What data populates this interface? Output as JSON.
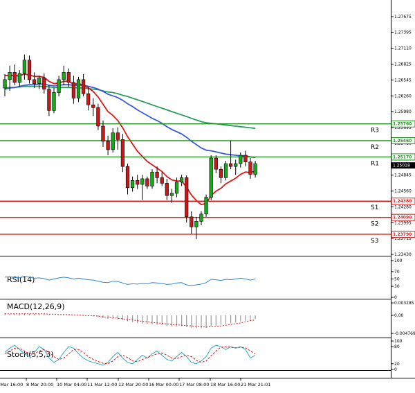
{
  "colors": {
    "bull": "#18a818",
    "bear": "#c81818",
    "wick": "#000000",
    "ema_fast": "#e01818",
    "ema_mid": "#3a5ad8",
    "ema_slow": "#2a9d5a",
    "resistance": "#1f8f1f",
    "support": "#e01818",
    "rsi": "#2f86d2",
    "macd_signal": "#e01818",
    "macd_hist": "#999999",
    "stoch_main": "#2aaacc",
    "stoch_signal": "#e01818"
  },
  "chart_data": [
    {
      "type": "candlestick",
      "price_ticks": [
        "1.27675",
        "1.27395",
        "1.27110",
        "1.26825",
        "1.26545",
        "1.26260",
        "1.25980",
        "1.25695",
        "1.25410",
        "1.25130",
        "1.24845",
        "1.24560",
        "1.24280",
        "1.23995",
        "1.23715",
        "1.23430"
      ],
      "ylim": [
        1.2343,
        1.27675
      ],
      "x_ticks": [
        "7 Mar 16:00",
        "8 Mar 20:00",
        "10 Mar 04:00",
        "11 Mar 12:00",
        "12 Mar 20:00",
        "16 Mar 00:00",
        "17 Mar 08:00",
        "18 Mar 16:00",
        "21 Mar 21:01"
      ],
      "levels": [
        {
          "name": "R3",
          "value": 1.2576,
          "label": "1.25760",
          "kind": "resistance"
        },
        {
          "name": "R2",
          "value": 1.2546,
          "label": "1.25460",
          "kind": "resistance"
        },
        {
          "name": "R1",
          "value": 1.2517,
          "label": "1.25170",
          "kind": "resistance"
        },
        {
          "name": "S1",
          "value": 1.2438,
          "label": "1.24380",
          "kind": "support"
        },
        {
          "name": "S2",
          "value": 1.2409,
          "label": "1.24090",
          "kind": "support"
        },
        {
          "name": "S3",
          "value": 1.2379,
          "label": "1.23790",
          "kind": "support"
        }
      ],
      "current_price": {
        "value": 1.25018,
        "label": "1.25018"
      },
      "candles": [
        {
          "o": 1.264,
          "h": 1.2665,
          "l": 1.2625,
          "c": 1.2655
        },
        {
          "o": 1.2655,
          "h": 1.268,
          "l": 1.2635,
          "c": 1.2668
        },
        {
          "o": 1.2668,
          "h": 1.2682,
          "l": 1.2645,
          "c": 1.265
        },
        {
          "o": 1.265,
          "h": 1.2672,
          "l": 1.2642,
          "c": 1.2666
        },
        {
          "o": 1.2666,
          "h": 1.27,
          "l": 1.2655,
          "c": 1.269
        },
        {
          "o": 1.269,
          "h": 1.2698,
          "l": 1.2648,
          "c": 1.2655
        },
        {
          "o": 1.2655,
          "h": 1.2668,
          "l": 1.264,
          "c": 1.2648
        },
        {
          "o": 1.2648,
          "h": 1.2662,
          "l": 1.2638,
          "c": 1.2658
        },
        {
          "o": 1.2658,
          "h": 1.2666,
          "l": 1.263,
          "c": 1.2638
        },
        {
          "o": 1.2638,
          "h": 1.2645,
          "l": 1.259,
          "c": 1.26
        },
        {
          "o": 1.26,
          "h": 1.264,
          "l": 1.2595,
          "c": 1.2632
        },
        {
          "o": 1.2632,
          "h": 1.2662,
          "l": 1.2625,
          "c": 1.2655
        },
        {
          "o": 1.2655,
          "h": 1.268,
          "l": 1.2645,
          "c": 1.2668
        },
        {
          "o": 1.2668,
          "h": 1.2675,
          "l": 1.2642,
          "c": 1.265
        },
        {
          "o": 1.265,
          "h": 1.2662,
          "l": 1.2612,
          "c": 1.2622
        },
        {
          "o": 1.2622,
          "h": 1.266,
          "l": 1.2615,
          "c": 1.2655
        },
        {
          "o": 1.2655,
          "h": 1.2665,
          "l": 1.2625,
          "c": 1.263
        },
        {
          "o": 1.263,
          "h": 1.2642,
          "l": 1.26,
          "c": 1.261
        },
        {
          "o": 1.261,
          "h": 1.2622,
          "l": 1.259,
          "c": 1.2605
        },
        {
          "o": 1.2605,
          "h": 1.2612,
          "l": 1.2565,
          "c": 1.2572
        },
        {
          "o": 1.2572,
          "h": 1.2582,
          "l": 1.2535,
          "c": 1.2545
        },
        {
          "o": 1.2545,
          "h": 1.2555,
          "l": 1.252,
          "c": 1.253
        },
        {
          "o": 1.253,
          "h": 1.2568,
          "l": 1.2525,
          "c": 1.256
        },
        {
          "o": 1.256,
          "h": 1.257,
          "l": 1.253,
          "c": 1.2548
        },
        {
          "o": 1.2548,
          "h": 1.2558,
          "l": 1.249,
          "c": 1.25
        },
        {
          "o": 1.25,
          "h": 1.2505,
          "l": 1.245,
          "c": 1.2462
        },
        {
          "o": 1.2462,
          "h": 1.2482,
          "l": 1.2455,
          "c": 1.2475
        },
        {
          "o": 1.2475,
          "h": 1.2485,
          "l": 1.246,
          "c": 1.2468
        },
        {
          "o": 1.2468,
          "h": 1.2485,
          "l": 1.244,
          "c": 1.2478
        },
        {
          "o": 1.2478,
          "h": 1.2482,
          "l": 1.246,
          "c": 1.2465
        },
        {
          "o": 1.2465,
          "h": 1.2495,
          "l": 1.246,
          "c": 1.249
        },
        {
          "o": 1.249,
          "h": 1.25,
          "l": 1.247,
          "c": 1.248
        },
        {
          "o": 1.248,
          "h": 1.249,
          "l": 1.2465,
          "c": 1.247
        },
        {
          "o": 1.247,
          "h": 1.2478,
          "l": 1.244,
          "c": 1.2448
        },
        {
          "o": 1.2448,
          "h": 1.246,
          "l": 1.2435,
          "c": 1.2452
        },
        {
          "o": 1.2452,
          "h": 1.248,
          "l": 1.2445,
          "c": 1.2472
        },
        {
          "o": 1.2472,
          "h": 1.2485,
          "l": 1.2465,
          "c": 1.248
        },
        {
          "o": 1.248,
          "h": 1.2484,
          "l": 1.24,
          "c": 1.241
        },
        {
          "o": 1.241,
          "h": 1.242,
          "l": 1.238,
          "c": 1.2392
        },
        {
          "o": 1.2392,
          "h": 1.241,
          "l": 1.237,
          "c": 1.2402
        },
        {
          "o": 1.2402,
          "h": 1.242,
          "l": 1.2395,
          "c": 1.2415
        },
        {
          "o": 1.2415,
          "h": 1.245,
          "l": 1.241,
          "c": 1.2445
        },
        {
          "o": 1.2445,
          "h": 1.252,
          "l": 1.244,
          "c": 1.2515
        },
        {
          "o": 1.2515,
          "h": 1.252,
          "l": 1.2488,
          "c": 1.2495
        },
        {
          "o": 1.2495,
          "h": 1.25,
          "l": 1.247,
          "c": 1.248
        },
        {
          "o": 1.248,
          "h": 1.251,
          "l": 1.2475,
          "c": 1.2505
        },
        {
          "o": 1.2505,
          "h": 1.2546,
          "l": 1.2495,
          "c": 1.25
        },
        {
          "o": 1.25,
          "h": 1.2512,
          "l": 1.2485,
          "c": 1.2505
        },
        {
          "o": 1.2505,
          "h": 1.2525,
          "l": 1.2498,
          "c": 1.252
        },
        {
          "o": 1.252,
          "h": 1.2528,
          "l": 1.25,
          "c": 1.2508
        },
        {
          "o": 1.2508,
          "h": 1.2515,
          "l": 1.2478,
          "c": 1.2486
        },
        {
          "o": 1.2486,
          "h": 1.251,
          "l": 1.248,
          "c": 1.2505
        }
      ],
      "ema_fast": [
        1.2662,
        1.2663,
        1.2662,
        1.2662,
        1.2665,
        1.2663,
        1.2661,
        1.2661,
        1.2659,
        1.2652,
        1.2648,
        1.2649,
        1.2652,
        1.2652,
        1.2647,
        1.2648,
        1.2645,
        1.264,
        1.2634,
        1.2624,
        1.2611,
        1.2598,
        1.2591,
        1.2582,
        1.2569,
        1.2553,
        1.254,
        1.2527,
        1.2518,
        1.2509,
        1.2503,
        1.2497,
        1.2491,
        1.2482,
        1.2476,
        1.2474,
        1.2474,
        1.2463,
        1.2449,
        1.2439,
        1.2432,
        1.2434,
        1.2448,
        1.2456,
        1.2461,
        1.2469,
        1.2474,
        1.2479,
        1.2486,
        1.249,
        1.2489,
        1.2492
      ],
      "ema_mid": [
        1.2638,
        1.264,
        1.2641,
        1.2643,
        1.2645,
        1.2646,
        1.2646,
        1.2647,
        1.2647,
        1.2645,
        1.2644,
        1.2645,
        1.2646,
        1.2646,
        1.2645,
        1.2645,
        1.2645,
        1.2643,
        1.2641,
        1.2638,
        1.2634,
        1.2629,
        1.2626,
        1.2623,
        1.2618,
        1.2612,
        1.2607,
        1.2601,
        1.2596,
        1.2591,
        1.2586,
        1.2582,
        1.2577,
        1.2571,
        1.2566,
        1.2562,
        1.2558,
        1.2552,
        1.2545,
        1.2539,
        1.2533,
        1.2529,
        1.2528,
        1.2526,
        1.2524,
        1.2522,
        1.2521,
        1.252,
        1.2519,
        1.2519,
        1.2517,
        1.2516
      ],
      "ema_slow": [
        1.264,
        1.2641,
        1.2641,
        1.2642,
        1.2643,
        1.2643,
        1.2643,
        1.2643,
        1.2643,
        1.2642,
        1.2641,
        1.2641,
        1.2641,
        1.2641,
        1.2641,
        1.264,
        1.264,
        1.2639,
        1.2638,
        1.2637,
        1.2635,
        1.2633,
        1.2632,
        1.263,
        1.2627,
        1.2625,
        1.2622,
        1.2619,
        1.2616,
        1.2613,
        1.261,
        1.2607,
        1.2604,
        1.2601,
        1.2598,
        1.2595,
        1.2592,
        1.2589,
        1.2586,
        1.2583,
        1.258,
        1.2578,
        1.2577,
        1.2576,
        1.2575,
        1.2574,
        1.2573,
        1.2572,
        1.2571,
        1.257,
        1.2569,
        1.2568
      ]
    },
    {
      "type": "line",
      "title": "RSI(14)",
      "ticks": [
        "100",
        "70",
        "50",
        "30",
        "0"
      ],
      "ylim": [
        0,
        100
      ],
      "series": [
        {
          "values": [
            55,
            56,
            54,
            53,
            57,
            55,
            52,
            53,
            51,
            47,
            50,
            53,
            55,
            53,
            50,
            52,
            50,
            48,
            47,
            44,
            41,
            40,
            44,
            43,
            39,
            35,
            37,
            36,
            38,
            37,
            40,
            39,
            38,
            35,
            36,
            39,
            40,
            34,
            32,
            34,
            36,
            40,
            49,
            48,
            46,
            49,
            48,
            50,
            52,
            50,
            47,
            50
          ]
        }
      ]
    },
    {
      "type": "bar",
      "title": "MACD(12,26,9)",
      "ticks": [
        "0.003285",
        "0.00",
        "-0.004769"
      ],
      "ylim": [
        -0.004769,
        0.003285
      ],
      "series": [
        {
          "name": "histogram",
          "values": [
            0.0004,
            0.0004,
            0.0004,
            0.0004,
            0.0005,
            0.0004,
            0.0004,
            0.0004,
            0.0003,
            0.0002,
            0.0001,
            0.0001,
            0.0002,
            0.0001,
            0.0,
            0.0,
            -0.0001,
            -0.0002,
            -0.0003,
            -0.0005,
            -0.0007,
            -0.0009,
            -0.001,
            -0.0011,
            -0.0013,
            -0.0016,
            -0.0018,
            -0.002,
            -0.0022,
            -0.0023,
            -0.0024,
            -0.0025,
            -0.0026,
            -0.0028,
            -0.0029,
            -0.0029,
            -0.0029,
            -0.0031,
            -0.0033,
            -0.0034,
            -0.0034,
            -0.0033,
            -0.0029,
            -0.0027,
            -0.0025,
            -0.0023,
            -0.0021,
            -0.0019,
            -0.0016,
            -0.0014,
            -0.0012,
            -0.001
          ]
        },
        {
          "name": "signal",
          "values": [
            0.0004,
            0.0004,
            0.0004,
            0.0004,
            0.0004,
            0.0004,
            0.0004,
            0.0004,
            0.0004,
            0.0003,
            0.0003,
            0.0002,
            0.0002,
            0.0002,
            0.0001,
            0.0001,
            0.0,
            -0.0001,
            -0.0001,
            -0.0002,
            -0.0004,
            -0.0005,
            -0.0006,
            -0.0008,
            -0.0009,
            -0.0011,
            -0.0012,
            -0.0014,
            -0.0016,
            -0.0017,
            -0.0019,
            -0.002,
            -0.0021,
            -0.0023,
            -0.0024,
            -0.0025,
            -0.0026,
            -0.0027,
            -0.0028,
            -0.0029,
            -0.003,
            -0.0031,
            -0.003,
            -0.0029,
            -0.0028,
            -0.0026,
            -0.0024,
            -0.0022,
            -0.002,
            -0.0017,
            -0.0014,
            -0.0012
          ]
        }
      ]
    },
    {
      "type": "line",
      "title": "Stoch(5,5,3)",
      "ticks": [
        "100",
        "80",
        "20",
        "0"
      ],
      "ylim": [
        0,
        100
      ],
      "series": [
        {
          "name": "main",
          "values": [
            60,
            75,
            85,
            70,
            55,
            45,
            60,
            80,
            70,
            40,
            25,
            35,
            60,
            80,
            75,
            55,
            40,
            30,
            25,
            20,
            15,
            25,
            45,
            60,
            40,
            25,
            20,
            35,
            50,
            40,
            55,
            65,
            50,
            35,
            30,
            45,
            60,
            45,
            25,
            20,
            30,
            45,
            75,
            85,
            80,
            70,
            80,
            75,
            80,
            70,
            40,
            50
          ]
        },
        {
          "name": "signal",
          "values": [
            55,
            65,
            75,
            75,
            65,
            55,
            55,
            65,
            70,
            60,
            45,
            35,
            40,
            55,
            70,
            70,
            60,
            45,
            35,
            28,
            22,
            20,
            30,
            45,
            50,
            42,
            30,
            27,
            35,
            42,
            48,
            55,
            58,
            50,
            40,
            38,
            45,
            50,
            45,
            32,
            25,
            30,
            48,
            65,
            78,
            80,
            78,
            76,
            78,
            76,
            65,
            55
          ]
        }
      ]
    }
  ]
}
